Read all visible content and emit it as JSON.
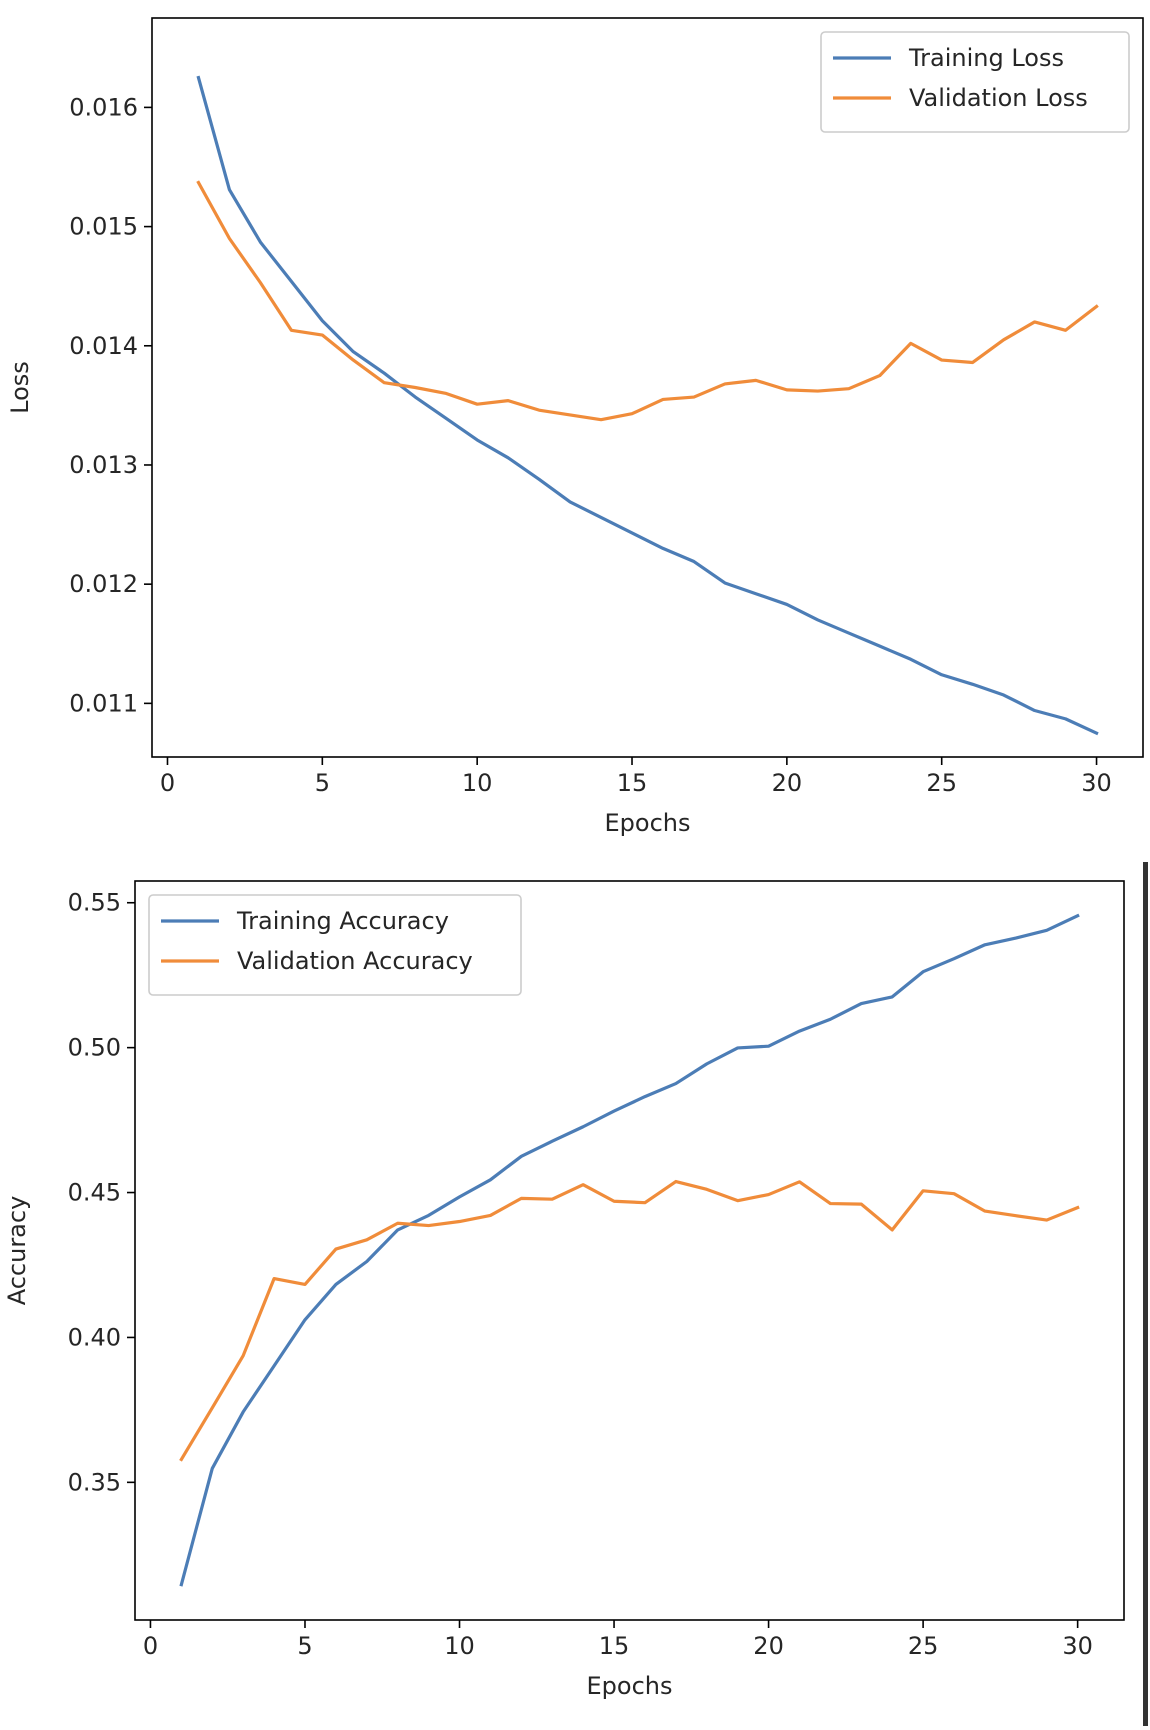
{
  "chart_data": [
    {
      "type": "line",
      "title": "",
      "xlabel": "Epochs",
      "ylabel": "Loss",
      "xlim": [
        -0.5,
        31.5
      ],
      "ylim": [
        0.01055,
        0.01675
      ],
      "xticks": [
        0,
        5,
        10,
        15,
        20,
        25,
        30
      ],
      "xtick_labels": [
        "0",
        "5",
        "10",
        "15",
        "20",
        "25",
        "30"
      ],
      "yticks": [
        0.011,
        0.012,
        0.013,
        0.014,
        0.015,
        0.016
      ],
      "ytick_labels": [
        "0.011",
        "0.012",
        "0.013",
        "0.014",
        "0.015",
        "0.016"
      ],
      "grid": false,
      "legend": "top-right",
      "x": [
        1,
        2,
        3,
        4,
        5,
        6,
        7,
        8,
        9,
        10,
        11,
        12,
        13,
        14,
        15,
        16,
        17,
        18,
        19,
        20,
        21,
        22,
        23,
        24,
        25,
        26,
        27,
        28,
        29,
        30
      ],
      "series": [
        {
          "name": "Training Loss",
          "color": "#4c7db6",
          "values": [
            0.01625,
            0.01531,
            0.01487,
            0.01454,
            0.01421,
            0.01395,
            0.01377,
            0.01357,
            0.01339,
            0.01321,
            0.01306,
            0.01288,
            0.01269,
            0.01256,
            0.01243,
            0.0123,
            0.01219,
            0.01201,
            0.01192,
            0.01183,
            0.0117,
            0.01159,
            0.01148,
            0.01137,
            0.01124,
            0.01116,
            0.01107,
            0.01094,
            0.01087,
            0.01075
          ]
        },
        {
          "name": "Validation Loss",
          "color": "#f08c3a",
          "values": [
            0.01537,
            0.0149,
            0.01453,
            0.01413,
            0.01409,
            0.01388,
            0.01369,
            0.01365,
            0.0136,
            0.01351,
            0.01354,
            0.01346,
            0.01342,
            0.01338,
            0.01343,
            0.01355,
            0.01357,
            0.01368,
            0.01371,
            0.01363,
            0.01362,
            0.01364,
            0.01375,
            0.01402,
            0.01388,
            0.01386,
            0.01405,
            0.0142,
            0.01413,
            0.01433
          ]
        }
      ]
    },
    {
      "type": "line",
      "title": "",
      "xlabel": "Epochs",
      "ylabel": "Accuracy",
      "xlim": [
        -0.5,
        31.5
      ],
      "ylim": [
        0.3025,
        0.5575
      ],
      "xticks": [
        0,
        5,
        10,
        15,
        20,
        25,
        30
      ],
      "xtick_labels": [
        "0",
        "5",
        "10",
        "15",
        "20",
        "25",
        "30"
      ],
      "yticks": [
        0.35,
        0.4,
        0.45,
        0.5,
        0.55
      ],
      "ytick_labels": [
        "0.35",
        "0.40",
        "0.45",
        "0.50",
        "0.55"
      ],
      "grid": false,
      "legend": "top-left",
      "x": [
        1,
        2,
        3,
        4,
        5,
        6,
        7,
        8,
        9,
        10,
        11,
        12,
        13,
        14,
        15,
        16,
        17,
        18,
        19,
        20,
        21,
        22,
        23,
        24,
        25,
        26,
        27,
        28,
        29,
        30
      ],
      "series": [
        {
          "name": "Training Accuracy",
          "color": "#4c7db6",
          "values": [
            0.3147,
            0.3548,
            0.3743,
            0.3902,
            0.4061,
            0.4183,
            0.4262,
            0.4371,
            0.4421,
            0.4485,
            0.4544,
            0.4625,
            0.4677,
            0.4727,
            0.4781,
            0.4831,
            0.4876,
            0.4944,
            0.4999,
            0.5005,
            0.5057,
            0.5098,
            0.5152,
            0.5175,
            0.5262,
            0.5307,
            0.5355,
            0.5378,
            0.5405,
            0.5455
          ]
        },
        {
          "name": "Validation Accuracy",
          "color": "#f08c3a",
          "values": [
            0.3579,
            0.3757,
            0.3937,
            0.4203,
            0.4183,
            0.4305,
            0.4337,
            0.4394,
            0.4386,
            0.44,
            0.4421,
            0.448,
            0.4477,
            0.4527,
            0.447,
            0.4465,
            0.4538,
            0.4511,
            0.4472,
            0.4493,
            0.4537,
            0.4462,
            0.446,
            0.4371,
            0.4506,
            0.4496,
            0.4436,
            0.442,
            0.4405,
            0.4448
          ]
        }
      ]
    }
  ]
}
